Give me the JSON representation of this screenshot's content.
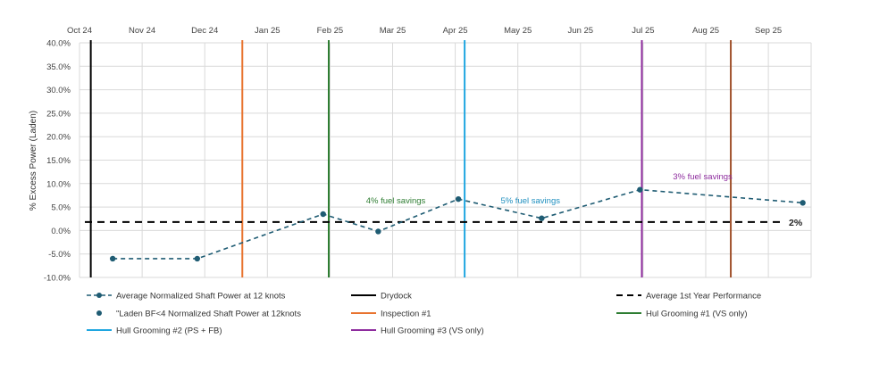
{
  "chart_data": {
    "type": "line",
    "ylabel": "% Excess Power (Laden)",
    "xlabel": "",
    "x_ticks": [
      "Oct 24",
      "Nov 24",
      "Dec 24",
      "Jan 25",
      "Feb 25",
      "Mar 25",
      "Apr 25",
      "May 25",
      "Jun 25",
      "Jul 25",
      "Aug 25",
      "Sep 25"
    ],
    "y_ticks": [
      "40.0%",
      "35.0%",
      "30.0%",
      "25.0%",
      "20.0%",
      "15.0%",
      "10.0%",
      "5.0%",
      "0.0%",
      "-5.0%",
      "-10.0%"
    ],
    "ylim": [
      -10,
      40
    ],
    "xlim_months": [
      0,
      11.75
    ],
    "gridlines": true,
    "series": [
      {
        "name": "Average Normalized Shaft Power at 12 knots",
        "style": "dashed-line-with-markers",
        "color": "#1f5c73",
        "points": [
          {
            "x": 0.53,
            "y": -6.0
          },
          {
            "x": 1.88,
            "y": -6.0
          },
          {
            "x": 3.89,
            "y": 3.5
          },
          {
            "x": 4.77,
            "y": -0.2
          },
          {
            "x": 6.05,
            "y": 6.7
          },
          {
            "x": 7.38,
            "y": 2.6
          },
          {
            "x": 8.95,
            "y": 8.7
          },
          {
            "x": 11.55,
            "y": 5.9
          }
        ]
      },
      {
        "name": "\"Laden BF<4 Normalized Shaft Power at 12knots",
        "style": "markers",
        "color": "#1f5c73"
      }
    ],
    "baseline": {
      "name": "Average 1st Year Performance",
      "value": 1.8,
      "label": "2%",
      "color": "#000000"
    },
    "events": [
      {
        "name": "Drydock",
        "x": 0.18,
        "color": "#000000"
      },
      {
        "name": "Inspection #1",
        "x": 2.6,
        "color": "#e8732f"
      },
      {
        "name": "Hul Grooming #1 (VS only)",
        "x": 3.98,
        "color": "#2e7d32"
      },
      {
        "name": "Hull Grooming #2 (PS + FB)",
        "x": 6.15,
        "color": "#1fa6e0"
      },
      {
        "name": "Hull Grooming #3 (VS only)",
        "x": 8.98,
        "color": "#8e2c9e"
      },
      {
        "name": "",
        "x": 10.4,
        "color": "#a0522d"
      }
    ],
    "annotations": [
      {
        "text": "4% fuel savings",
        "x": 5.05,
        "y": 5.8,
        "color": "#2e7d32"
      },
      {
        "text": "5% fuel savings",
        "x": 7.2,
        "y": 5.8,
        "color": "#1f8fbf"
      },
      {
        "text": "3% fuel savings",
        "x": 9.95,
        "y": 10.9,
        "color": "#8e2c9e"
      }
    ],
    "legend": {
      "position": "bottom",
      "entries": [
        {
          "label": "Average Normalized Shaft Power at 12 knots",
          "kind": "dashed-marker",
          "color": "#1f5c73"
        },
        {
          "label": "Drydock",
          "kind": "line",
          "color": "#000000"
        },
        {
          "label": "Average 1st Year Performance",
          "kind": "dashed",
          "color": "#000000"
        },
        {
          "label": "\"Laden BF<4 Normalized Shaft Power at 12knots",
          "kind": "marker",
          "color": "#1f5c73"
        },
        {
          "label": "Inspection #1",
          "kind": "line",
          "color": "#e8732f"
        },
        {
          "label": "Hul Grooming #1 (VS only)",
          "kind": "line",
          "color": "#2e7d32"
        },
        {
          "label": "Hull Grooming #2 (PS + FB)",
          "kind": "line",
          "color": "#1fa6e0"
        },
        {
          "label": "Hull Grooming #3 (VS only)",
          "kind": "line",
          "color": "#8e2c9e"
        }
      ]
    }
  }
}
